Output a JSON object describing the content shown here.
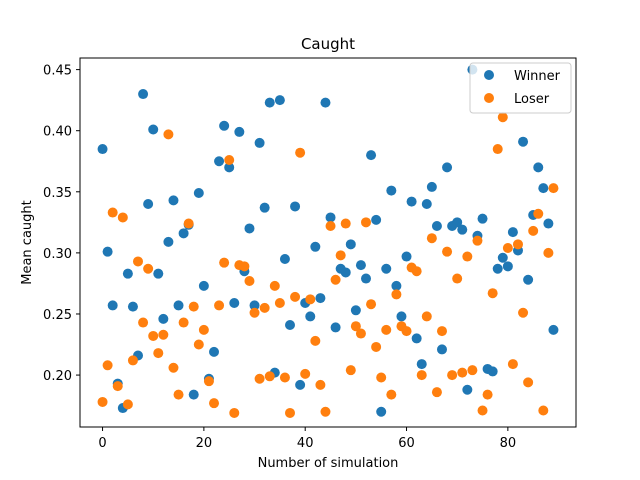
{
  "chart_data": {
    "type": "scatter",
    "title": "Caught",
    "xlabel": "Number of simulation",
    "ylabel": "Mean caught",
    "xlim": [
      -4.45,
      93.45
    ],
    "ylim": [
      0.1575,
      0.4595
    ],
    "xticks": [
      0,
      20,
      40,
      60,
      80
    ],
    "yticks": [
      0.2,
      0.25,
      0.3,
      0.35,
      0.4,
      0.45
    ],
    "ytick_labels": [
      "0.20",
      "0.25",
      "0.30",
      "0.35",
      "0.40",
      "0.45"
    ],
    "grid": false,
    "legend_position": "top-right",
    "series": [
      {
        "name": "Winner",
        "color": "#1f77b4",
        "x": [
          0,
          1,
          2,
          3,
          4,
          5,
          6,
          7,
          8,
          9,
          10,
          11,
          12,
          13,
          14,
          15,
          16,
          17,
          18,
          19,
          20,
          21,
          22,
          23,
          24,
          25,
          26,
          27,
          28,
          29,
          30,
          31,
          32,
          33,
          34,
          35,
          36,
          37,
          38,
          39,
          40,
          41,
          42,
          43,
          44,
          45,
          46,
          47,
          48,
          49,
          50,
          51,
          52,
          53,
          54,
          55,
          56,
          57,
          58,
          59,
          60,
          61,
          62,
          63,
          64,
          65,
          66,
          67,
          68,
          69,
          70,
          71,
          72,
          73,
          74,
          75,
          76,
          77,
          78,
          79,
          80,
          81,
          82,
          83,
          84,
          85,
          86,
          87,
          88,
          89
        ],
        "y": [
          0.385,
          0.301,
          0.257,
          0.193,
          0.173,
          0.283,
          0.256,
          0.216,
          0.43,
          0.34,
          0.401,
          0.283,
          0.246,
          0.309,
          0.343,
          0.257,
          0.316,
          0.323,
          0.184,
          0.349,
          0.273,
          0.197,
          0.219,
          0.375,
          0.404,
          0.37,
          0.259,
          0.399,
          0.285,
          0.32,
          0.257,
          0.39,
          0.337,
          0.423,
          0.202,
          0.425,
          0.295,
          0.241,
          0.338,
          0.192,
          0.259,
          0.248,
          0.305,
          0.263,
          0.423,
          0.329,
          0.239,
          0.287,
          0.284,
          0.307,
          0.253,
          0.29,
          0.279,
          0.38,
          0.327,
          0.17,
          0.287,
          0.351,
          0.273,
          0.248,
          0.297,
          0.342,
          0.23,
          0.209,
          0.34,
          0.354,
          0.322,
          0.221,
          0.37,
          0.322,
          0.325,
          0.319,
          0.188,
          0.45,
          0.314,
          0.328,
          0.205,
          0.203,
          0.287,
          0.296,
          0.289,
          0.317,
          0.302,
          0.391,
          0.278,
          0.331,
          0.37,
          0.353,
          0.324,
          0.237
        ]
      },
      {
        "name": "Loser",
        "color": "#ff7f0e",
        "x": [
          0,
          1,
          2,
          3,
          4,
          5,
          6,
          7,
          8,
          9,
          10,
          11,
          12,
          13,
          14,
          15,
          16,
          17,
          18,
          19,
          20,
          21,
          22,
          23,
          24,
          25,
          26,
          27,
          28,
          29,
          30,
          31,
          32,
          33,
          34,
          35,
          36,
          37,
          38,
          39,
          40,
          41,
          42,
          43,
          44,
          45,
          46,
          47,
          48,
          49,
          50,
          51,
          52,
          53,
          54,
          55,
          56,
          57,
          58,
          59,
          60,
          61,
          62,
          63,
          64,
          65,
          66,
          67,
          68,
          69,
          70,
          71,
          72,
          73,
          74,
          75,
          76,
          77,
          78,
          79,
          80,
          81,
          82,
          83,
          84,
          85,
          86,
          87,
          88,
          89
        ],
        "y": [
          0.178,
          0.208,
          0.333,
          0.191,
          0.329,
          0.176,
          0.212,
          0.293,
          0.243,
          0.287,
          0.232,
          0.218,
          0.233,
          0.397,
          0.206,
          0.184,
          0.243,
          0.324,
          0.256,
          0.225,
          0.237,
          0.195,
          0.177,
          0.257,
          0.292,
          0.376,
          0.169,
          0.29,
          0.289,
          0.277,
          0.251,
          0.197,
          0.255,
          0.199,
          0.273,
          0.259,
          0.198,
          0.169,
          0.264,
          0.382,
          0.201,
          0.262,
          0.228,
          0.192,
          0.17,
          0.322,
          0.278,
          0.298,
          0.324,
          0.204,
          0.24,
          0.234,
          0.325,
          0.258,
          0.223,
          0.198,
          0.237,
          0.184,
          0.266,
          0.24,
          0.236,
          0.288,
          0.285,
          0.2,
          0.248,
          0.312,
          0.186,
          0.236,
          0.301,
          0.2,
          0.279,
          0.202,
          0.297,
          0.204,
          0.31,
          0.171,
          0.184,
          0.267,
          0.385,
          0.411,
          0.304,
          0.209,
          0.307,
          0.251,
          0.194,
          0.318,
          0.332,
          0.171,
          0.3,
          0.353
        ]
      }
    ]
  }
}
